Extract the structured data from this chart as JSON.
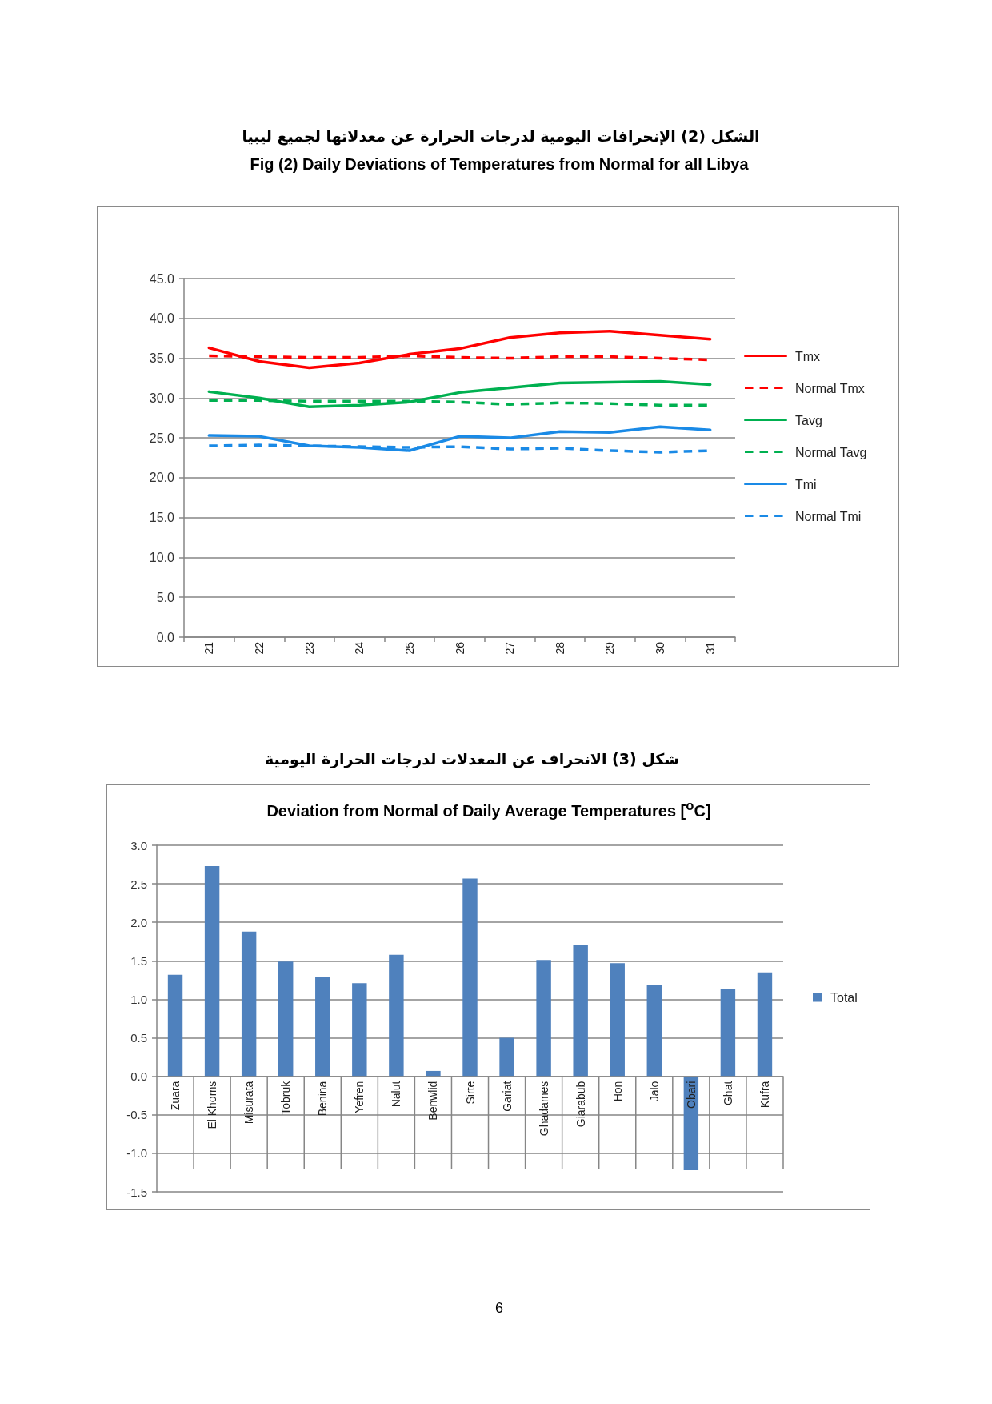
{
  "chart_data": [
    {
      "type": "line",
      "title": "الشكل (2) الإنحرافات اليومية لدرجات الحرارة عن معدلاتها لجميع ليبيا",
      "subtitle": "Fig (2) Daily Deviations of Temperatures from Normal for all Libya",
      "categories": [
        "21",
        "22",
        "23",
        "24",
        "25",
        "26",
        "27",
        "28",
        "29",
        "30",
        "31"
      ],
      "series": [
        {
          "name": "Tmx",
          "color": "#ff0000",
          "line_style": "solid",
          "values": [
            36.3,
            34.6,
            33.8,
            34.4,
            35.5,
            36.2,
            37.6,
            38.2,
            38.4,
            37.9,
            37.4
          ]
        },
        {
          "name": "Normal Tmx",
          "color": "#ff0000",
          "line_style": "dashed",
          "values": [
            35.3,
            35.2,
            35.1,
            35.1,
            35.3,
            35.1,
            35.0,
            35.2,
            35.2,
            35.0,
            34.8
          ]
        },
        {
          "name": "Tavg",
          "color": "#00b050",
          "line_style": "solid",
          "values": [
            30.8,
            30.0,
            28.9,
            29.1,
            29.5,
            30.7,
            31.3,
            31.9,
            32.0,
            32.1,
            31.7
          ]
        },
        {
          "name": "Normal Tavg",
          "color": "#00b050",
          "line_style": "dashed",
          "values": [
            29.7,
            29.7,
            29.6,
            29.6,
            29.6,
            29.5,
            29.2,
            29.4,
            29.3,
            29.1,
            29.1
          ]
        },
        {
          "name": "Tmi",
          "color": "#1a8ae6",
          "line_style": "solid",
          "values": [
            25.3,
            25.2,
            24.0,
            23.8,
            23.4,
            25.2,
            25.0,
            25.8,
            25.7,
            26.4,
            26.0
          ]
        },
        {
          "name": "Normal Tmi",
          "color": "#1a8ae6",
          "line_style": "dashed",
          "values": [
            24.0,
            24.1,
            24.0,
            23.9,
            23.8,
            23.9,
            23.6,
            23.7,
            23.4,
            23.2,
            23.4
          ]
        }
      ],
      "ylim": [
        0,
        45
      ],
      "yticks": [
        {
          "value": 0,
          "label": "0.0"
        },
        {
          "value": 5,
          "label": "5.0"
        },
        {
          "value": 10,
          "label": "10.0"
        },
        {
          "value": 15,
          "label": "15.0"
        },
        {
          "value": 20,
          "label": "20.0"
        },
        {
          "value": 25,
          "label": "25.0"
        },
        {
          "value": 30,
          "label": "30.0"
        },
        {
          "value": 35,
          "label": "35.0"
        },
        {
          "value": 40,
          "label": "40.0"
        },
        {
          "value": 45,
          "label": "45.0"
        }
      ],
      "grid": "y",
      "legend": "right",
      "marker": "none"
    },
    {
      "type": "bar",
      "title": "شكل (3) الانحراف عن المعدلات لدرجات الحرارة اليومية",
      "subtitle": "Deviation from Normal of Daily Average Temperatures [$^{o}$C]",
      "categories": [
        "Zuara",
        "El Khoms",
        "Misurata",
        "Tobruk",
        "Benina",
        "Yefren",
        "Nalut",
        "Benwlid",
        "Sirte",
        "Gariat",
        "Ghadames",
        "Giarabub",
        "Hon",
        "Jalo",
        "Obari",
        "Ghat",
        "Kufra"
      ],
      "series": [
        {
          "name": "Total",
          "color": "#4f81bd",
          "values": [
            1.32,
            2.73,
            1.88,
            1.49,
            1.29,
            1.21,
            1.58,
            0.07,
            2.57,
            0.5,
            1.51,
            1.7,
            1.47,
            1.19,
            -1.22,
            1.14,
            1.35
          ]
        }
      ],
      "ylim": [
        -1.5,
        3
      ],
      "yticks": [
        {
          "value": -1.5,
          "label": "-1.5"
        },
        {
          "value": -1,
          "label": "-1.0"
        },
        {
          "value": -0.5,
          "label": "-0.5"
        },
        {
          "value": 0,
          "label": "0.0"
        },
        {
          "value": 0.5,
          "label": "0.5"
        },
        {
          "value": 1,
          "label": "1.0"
        },
        {
          "value": 1.5,
          "label": "1.5"
        },
        {
          "value": 2,
          "label": "2.0"
        },
        {
          "value": 2.5,
          "label": "2.5"
        },
        {
          "value": 3,
          "label": "3.0"
        }
      ],
      "grid": "y",
      "legend": "right",
      "annotations": [
        "6"
      ]
    }
  ]
}
